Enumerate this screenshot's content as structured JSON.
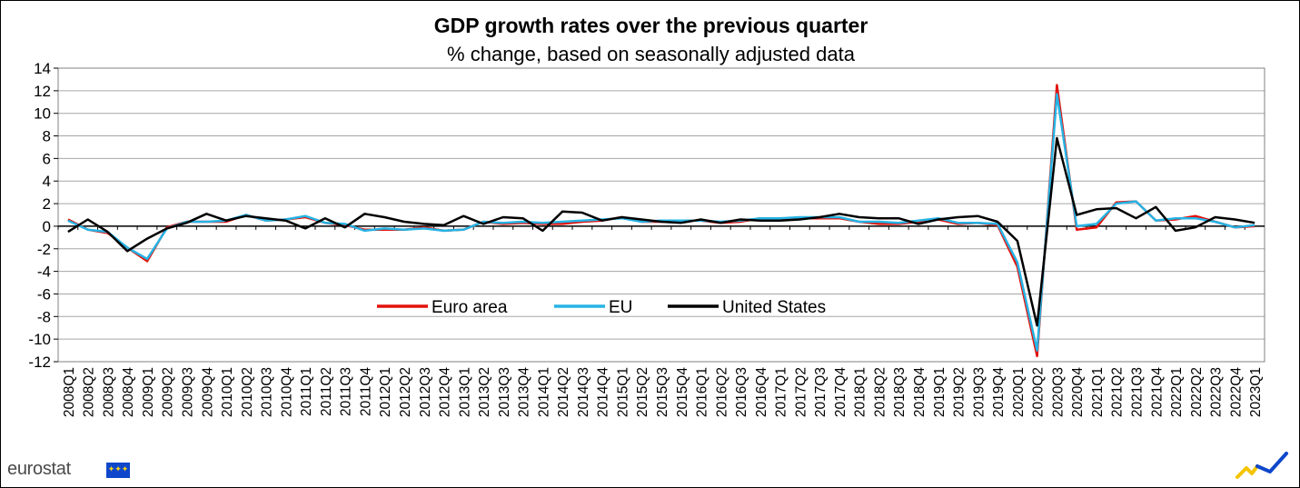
{
  "chart_data": {
    "type": "line",
    "title": "GDP growth rates over the previous quarter",
    "subtitle": "% change, based on seasonally adjusted data",
    "xlabel": "",
    "ylabel": "",
    "ylim": [
      -12,
      14
    ],
    "yticks": [
      14,
      12,
      10,
      8,
      6,
      4,
      2,
      0,
      -2,
      -4,
      -6,
      -8,
      -10,
      -12
    ],
    "grid": true,
    "legend_position": "center-inside",
    "categories": [
      "2008Q1",
      "2008Q2",
      "2008Q3",
      "2008Q4",
      "2009Q1",
      "2009Q2",
      "2009Q3",
      "2009Q4",
      "2010Q1",
      "2010Q2",
      "2010Q3",
      "2010Q4",
      "2011Q1",
      "2011Q2",
      "2011Q3",
      "2011Q4",
      "2012Q1",
      "2012Q2",
      "2012Q3",
      "2012Q4",
      "2013Q1",
      "2013Q2",
      "2013Q3",
      "2013Q4",
      "2014Q1",
      "2014Q2",
      "2014Q3",
      "2014Q4",
      "2015Q1",
      "2015Q2",
      "2015Q3",
      "2015Q4",
      "2016Q1",
      "2016Q2",
      "2016Q3",
      "2016Q4",
      "2017Q1",
      "2017Q2",
      "2017Q3",
      "2017Q4",
      "2018Q1",
      "2018Q2",
      "2018Q3",
      "2018Q4",
      "2019Q1",
      "2019Q2",
      "2019Q3",
      "2019Q4",
      "2020Q1",
      "2020Q2",
      "2020Q3",
      "2020Q4",
      "2021Q1",
      "2021Q2",
      "2021Q3",
      "2021Q4",
      "2022Q1",
      "2022Q2",
      "2022Q3",
      "2022Q4",
      "2023Q1"
    ],
    "series": [
      {
        "name": "Euro area",
        "color": "#e3120b",
        "values": [
          0.6,
          -0.3,
          -0.6,
          -1.9,
          -3.1,
          -0.1,
          0.4,
          0.4,
          0.4,
          1.0,
          0.5,
          0.6,
          0.8,
          0.3,
          0.1,
          -0.3,
          -0.3,
          -0.3,
          -0.1,
          -0.4,
          -0.3,
          0.4,
          0.2,
          0.3,
          0.2,
          0.2,
          0.4,
          0.5,
          0.8,
          0.4,
          0.4,
          0.5,
          0.5,
          0.3,
          0.4,
          0.7,
          0.7,
          0.7,
          0.7,
          0.7,
          0.4,
          0.2,
          0.2,
          0.4,
          0.6,
          0.2,
          0.3,
          0.1,
          -3.6,
          -11.5,
          12.5,
          -0.3,
          -0.1,
          2.1,
          2.2,
          0.5,
          0.6,
          0.9,
          0.4,
          -0.1,
          0.0
        ]
      },
      {
        "name": "EU",
        "color": "#26b3e4",
        "values": [
          0.5,
          -0.3,
          -0.5,
          -1.9,
          -2.9,
          -0.2,
          0.4,
          0.4,
          0.5,
          1.0,
          0.5,
          0.6,
          0.9,
          0.3,
          0.2,
          -0.4,
          -0.2,
          -0.3,
          -0.2,
          -0.4,
          -0.3,
          0.4,
          0.3,
          0.4,
          0.3,
          0.4,
          0.5,
          0.6,
          0.7,
          0.4,
          0.5,
          0.5,
          0.5,
          0.4,
          0.5,
          0.7,
          0.7,
          0.8,
          0.8,
          0.8,
          0.4,
          0.4,
          0.3,
          0.5,
          0.7,
          0.3,
          0.3,
          0.2,
          -3.2,
          -11.0,
          11.7,
          0.0,
          0.2,
          2.0,
          2.2,
          0.5,
          0.7,
          0.7,
          0.4,
          -0.1,
          0.1
        ]
      },
      {
        "name": "United States",
        "color": "#000000",
        "values": [
          -0.5,
          0.6,
          -0.5,
          -2.2,
          -1.1,
          -0.2,
          0.3,
          1.1,
          0.5,
          0.9,
          0.7,
          0.5,
          -0.2,
          0.7,
          -0.1,
          1.1,
          0.8,
          0.4,
          0.2,
          0.1,
          0.9,
          0.2,
          0.8,
          0.7,
          -0.4,
          1.3,
          1.2,
          0.5,
          0.8,
          0.6,
          0.4,
          0.3,
          0.6,
          0.3,
          0.6,
          0.5,
          0.5,
          0.6,
          0.8,
          1.1,
          0.8,
          0.7,
          0.7,
          0.2,
          0.6,
          0.8,
          0.9,
          0.4,
          -1.3,
          -8.8,
          7.8,
          1.0,
          1.5,
          1.6,
          0.7,
          1.7,
          -0.4,
          -0.1,
          0.8,
          0.6,
          0.3
        ]
      }
    ]
  },
  "branding": {
    "logo_text": "eurostat",
    "flag_stars": "✦✦✦"
  }
}
